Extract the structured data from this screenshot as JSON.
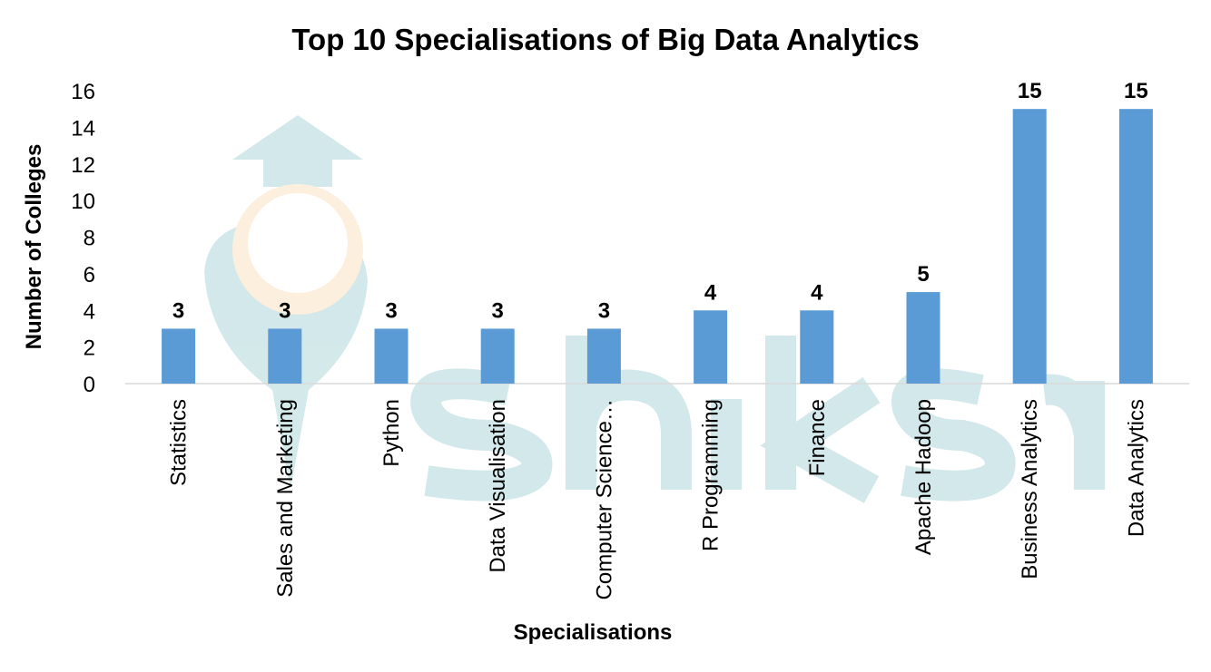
{
  "chart_data": {
    "type": "bar",
    "title": "Top 10 Specialisations of Big Data Analytics",
    "xlabel": "Specialisations",
    "ylabel": "Number of Colleges",
    "categories": [
      "Statistics",
      "Sales and Marketing",
      "Python",
      "Data Visualisation",
      "Computer Science…",
      "R Programming",
      "Finance",
      "Apache Hadoop",
      "Business Analytics",
      "Data Analytics"
    ],
    "values": [
      3,
      3,
      3,
      3,
      3,
      4,
      4,
      5,
      15,
      15
    ],
    "ylim": [
      0,
      16
    ],
    "yticks": [
      0,
      2,
      4,
      6,
      8,
      10,
      12,
      14,
      16
    ],
    "grid": false,
    "legend": "none",
    "data_labels": true,
    "bar_color": "#5b9bd5"
  },
  "watermark": {
    "text": "shiksha",
    "color": "#a8d3d6"
  }
}
